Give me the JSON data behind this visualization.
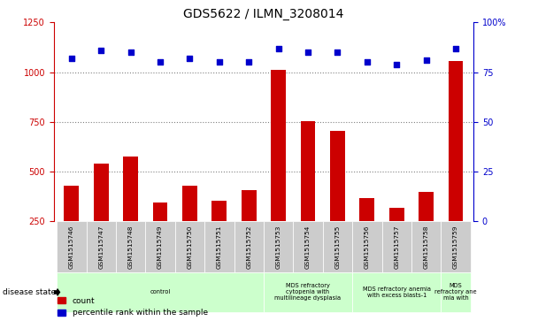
{
  "title": "GDS5622 / ILMN_3208014",
  "samples": [
    "GSM1515746",
    "GSM1515747",
    "GSM1515748",
    "GSM1515749",
    "GSM1515750",
    "GSM1515751",
    "GSM1515752",
    "GSM1515753",
    "GSM1515754",
    "GSM1515755",
    "GSM1515756",
    "GSM1515757",
    "GSM1515758",
    "GSM1515759"
  ],
  "counts": [
    430,
    540,
    575,
    345,
    430,
    355,
    405,
    1010,
    755,
    705,
    365,
    320,
    400,
    1055
  ],
  "percentile_ranks": [
    82,
    86,
    85,
    80,
    82,
    80,
    80,
    87,
    85,
    85,
    80,
    79,
    81,
    87
  ],
  "ylim_left": [
    250,
    1250
  ],
  "ylim_right": [
    0,
    100
  ],
  "yticks_left": [
    250,
    500,
    750,
    1000,
    1250
  ],
  "yticks_right": [
    0,
    25,
    50,
    75,
    100
  ],
  "bar_color": "#cc0000",
  "dot_color": "#0000cc",
  "bar_width": 0.5,
  "group_spans": [
    [
      0,
      7,
      "control",
      "#ccffcc"
    ],
    [
      7,
      10,
      "MDS refractory\ncytopenia with\nmultilineage dysplasia",
      "#ccffcc"
    ],
    [
      10,
      13,
      "MDS refractory anemia\nwith excess blasts-1",
      "#ccffcc"
    ],
    [
      13,
      14,
      "MDS\nrefractory ane\nmia with",
      "#ccffcc"
    ]
  ],
  "disease_state_label": "disease state",
  "legend_count_label": "count",
  "legend_percentile_label": "percentile rank within the sample",
  "background_color": "#ffffff",
  "tick_label_bg": "#cccccc",
  "gridline_vals": [
    500,
    750,
    1000
  ]
}
